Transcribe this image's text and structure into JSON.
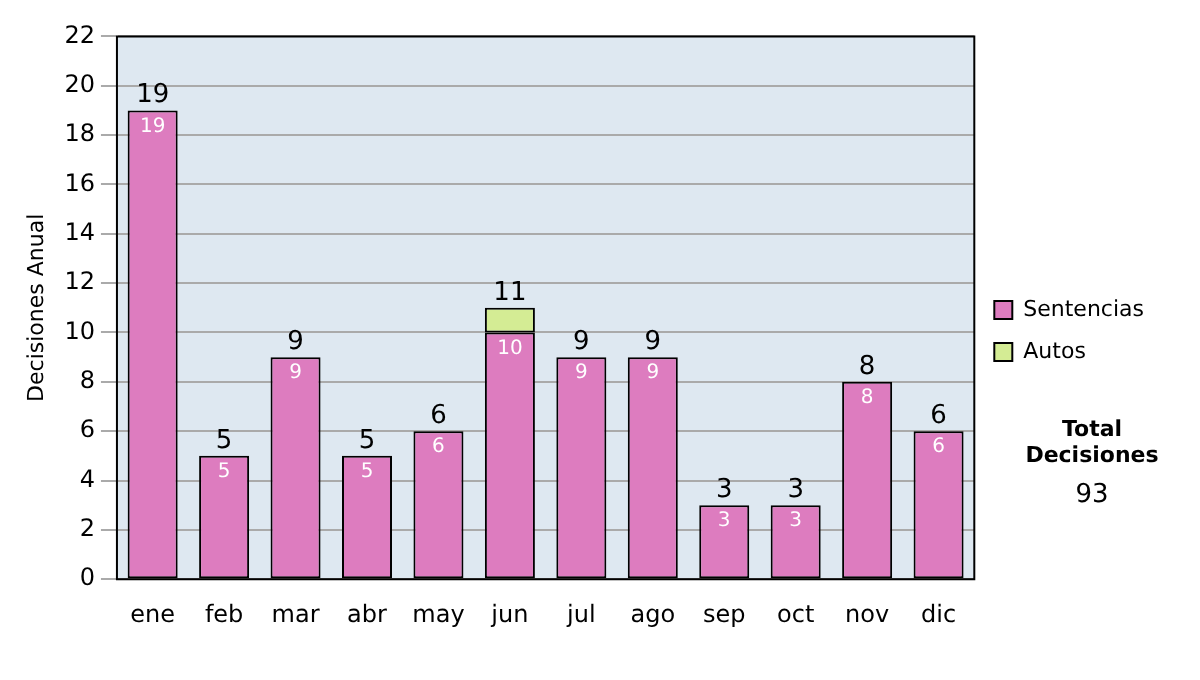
{
  "chart_data": {
    "type": "bar",
    "stacked": true,
    "ylabel": "Decisiones Anual",
    "categories": [
      "ene",
      "feb",
      "mar",
      "abr",
      "may",
      "jun",
      "jul",
      "ago",
      "sep",
      "oct",
      "nov",
      "dic"
    ],
    "series": [
      {
        "name": "Sentencias",
        "color": "#dd7cbf",
        "values": [
          19,
          5,
          9,
          5,
          6,
          10,
          9,
          9,
          3,
          3,
          8,
          6
        ],
        "value_labels": [
          "19",
          "5",
          "9",
          "5",
          "6",
          "10",
          "9",
          "9",
          "3",
          "3",
          "8",
          "6"
        ]
      },
      {
        "name": "Autos",
        "color": "#d4ec94",
        "values": [
          null,
          null,
          null,
          null,
          null,
          1,
          null,
          null,
          null,
          null,
          null,
          null
        ],
        "value_labels": [
          null,
          null,
          null,
          null,
          null,
          null,
          null,
          null,
          null,
          null,
          null,
          null
        ]
      }
    ],
    "totals": [
      "19",
      "5",
      "9",
      "5",
      "6",
      "11",
      "9",
      "9",
      "3",
      "3",
      "8",
      "6"
    ],
    "ylim": [
      0,
      22
    ],
    "yticks": [
      0,
      2,
      4,
      6,
      8,
      10,
      12,
      14,
      16,
      18,
      20,
      22
    ],
    "grid": "y",
    "legend": "right",
    "annotations": [
      "Total Decisiones",
      "93"
    ]
  }
}
